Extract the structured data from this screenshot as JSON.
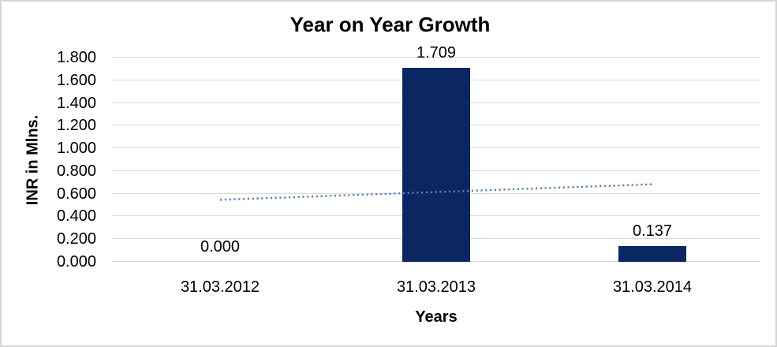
{
  "chart_data": {
    "type": "bar",
    "title": "Year on Year Growth",
    "xlabel": "Years",
    "ylabel": "INR in Mlns.",
    "categories": [
      "31.03.2012",
      "31.03.2013",
      "31.03.2014"
    ],
    "values": [
      0.0,
      1.709,
      0.137
    ],
    "data_labels": [
      "0.000",
      "1.709",
      "0.137"
    ],
    "y_ticks": [
      "0.000",
      "0.200",
      "0.400",
      "0.600",
      "0.800",
      "1.000",
      "1.200",
      "1.400",
      "1.600",
      "1.800"
    ],
    "ylim": [
      0,
      1.8
    ],
    "y_step": 0.2,
    "grid": true,
    "legend": "none",
    "colors": {
      "bar": "#0b2763",
      "trendline": "#4f81bd",
      "gridline": "#d9d9d9",
      "text": "#000000",
      "frame_border": "#d6d6d6"
    },
    "trendline": {
      "style": "dotted",
      "color": "#4f81bd",
      "start_value": 0.5465,
      "end_value": 0.6835
    }
  }
}
